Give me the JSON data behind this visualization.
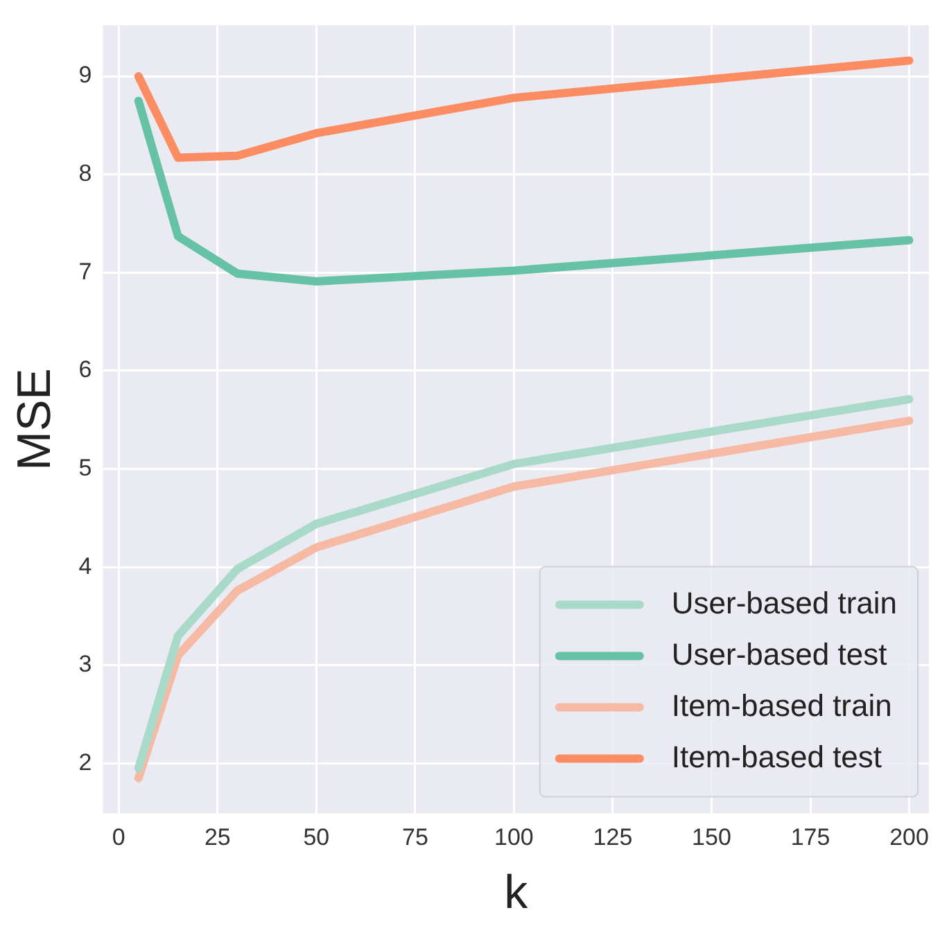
{
  "chart_data": {
    "type": "line",
    "xlabel": "k",
    "ylabel": "MSE",
    "x": [
      5,
      15,
      30,
      50,
      100,
      200
    ],
    "series": [
      {
        "name": "User-based train",
        "color": "#a9dac9",
        "values": [
          1.95,
          3.3,
          3.98,
          4.44,
          5.05,
          5.71
        ]
      },
      {
        "name": "User-based test",
        "color": "#66c2a5",
        "values": [
          8.75,
          7.37,
          6.99,
          6.91,
          7.02,
          7.33
        ]
      },
      {
        "name": "Item-based train",
        "color": "#f6b9a3",
        "values": [
          1.85,
          3.1,
          3.76,
          4.2,
          4.82,
          5.49
        ]
      },
      {
        "name": "Item-based test",
        "color": "#fc8d62",
        "values": [
          9.0,
          8.17,
          8.19,
          8.42,
          8.78,
          9.16
        ]
      }
    ],
    "xlim": [
      -4,
      205
    ],
    "xticks": [
      0,
      25,
      50,
      75,
      100,
      125,
      150,
      175,
      200
    ],
    "ylim": [
      1.49,
      9.52
    ],
    "yticks": [
      2,
      3,
      4,
      5,
      6,
      7,
      8,
      9
    ],
    "grid": true,
    "legend": "bottom right",
    "marker": "none",
    "line_style": "solid"
  }
}
